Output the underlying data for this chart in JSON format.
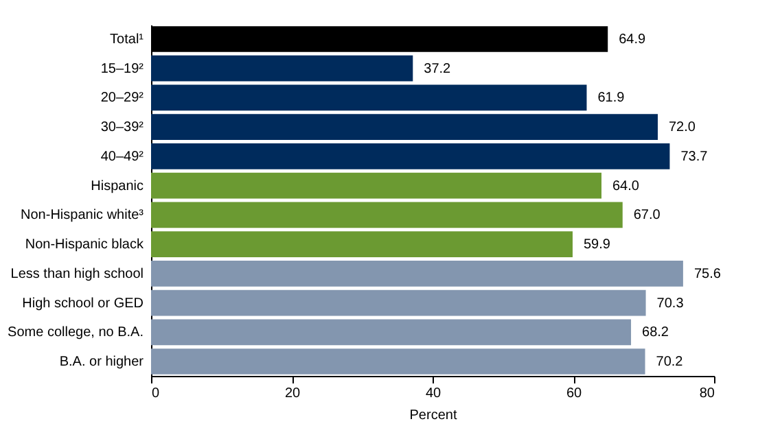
{
  "chart_data": {
    "type": "bar",
    "orientation": "horizontal",
    "xlabel": "Percent",
    "categories": [
      "Total¹",
      "15–19²",
      "20–29²",
      "30–39²",
      "40–49²",
      "Hispanic",
      "Non-Hispanic white³",
      "Non-Hispanic black",
      "Less than high school",
      "High school or GED",
      "Some college, no B.A.",
      "B.A. or higher"
    ],
    "values": [
      64.9,
      37.2,
      61.9,
      72.0,
      73.7,
      64.0,
      67.0,
      59.9,
      75.6,
      70.3,
      68.2,
      70.2
    ],
    "value_labels": [
      "64.9",
      "37.2",
      "61.9",
      "72.0",
      "73.7",
      "64.0",
      "67.0",
      "59.9",
      "75.6",
      "70.3",
      "68.2",
      "70.2"
    ],
    "colors": [
      "#000000",
      "#002b5c",
      "#002b5c",
      "#002b5c",
      "#002b5c",
      "#6b9a32",
      "#6b9a32",
      "#6b9a32",
      "#8396af",
      "#8396af",
      "#8396af",
      "#8396af"
    ],
    "xlim": [
      0,
      80
    ],
    "xticks": [
      0,
      20,
      40,
      60,
      80
    ]
  }
}
